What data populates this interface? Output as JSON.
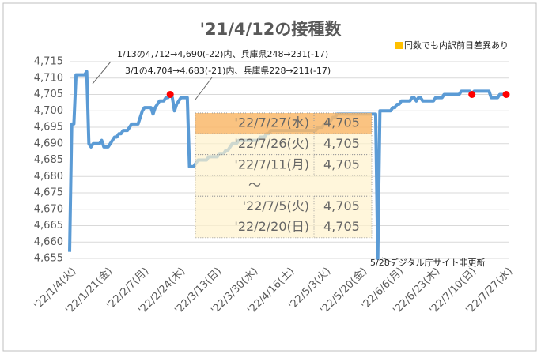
{
  "chart_data": {
    "type": "line",
    "title": "'21/4/12の接種数",
    "legend_note": {
      "text": "同数でも内訳前日差異あり",
      "color": "#ffc000"
    },
    "categories": [
      "'22/1/4(火)",
      null,
      null,
      null,
      null,
      null,
      null,
      null,
      null,
      null,
      null,
      null,
      null,
      null,
      null,
      null,
      null,
      "'22/1/21(金)",
      null,
      null,
      null,
      null,
      null,
      null,
      null,
      null,
      null,
      null,
      null,
      null,
      null,
      null,
      null,
      null,
      "'22/2/7(月)",
      null,
      null,
      null,
      null,
      null,
      null,
      null,
      null,
      null,
      null,
      null,
      null,
      null,
      null,
      null,
      null,
      "'22/2/24(木)",
      null,
      null,
      null,
      null,
      null,
      null,
      null,
      null,
      null,
      null,
      null,
      null,
      null,
      null,
      null,
      null,
      "'22/3/13(日)",
      null,
      null,
      null,
      null,
      null,
      null,
      null,
      null,
      null,
      null,
      null,
      null,
      null,
      null,
      null,
      null,
      "'22/3/30(水)",
      null,
      null,
      null,
      null,
      null,
      null,
      null,
      null,
      null,
      null,
      null,
      null,
      null,
      null,
      null,
      null,
      "'22/4/16(土)",
      null,
      null,
      null,
      null,
      null,
      null,
      null,
      null,
      null,
      null,
      null,
      null,
      null,
      null,
      null,
      null,
      "'22/5/3(火)",
      null,
      null,
      null,
      null,
      null,
      null,
      null,
      null,
      null,
      null,
      null,
      null,
      null,
      null,
      null,
      null,
      "'22/5/20(金)",
      null,
      null,
      null,
      null,
      null,
      null,
      null,
      null,
      null,
      null,
      null,
      null,
      null,
      null,
      null,
      null,
      "'22/6/6(月)",
      null,
      null,
      null,
      null,
      null,
      null,
      null,
      null,
      null,
      null,
      null,
      null,
      null,
      null,
      null,
      null,
      "'22/6/23(木)",
      null,
      null,
      null,
      null,
      null,
      null,
      null,
      null,
      null,
      null,
      null,
      null,
      null,
      null,
      null,
      null,
      "'22/7/10(日)",
      null,
      null,
      null,
      null,
      null,
      null,
      null,
      null,
      null,
      null,
      null,
      null,
      null,
      null,
      null,
      null,
      "'22/7/27(水)"
    ],
    "series": [
      {
        "color": "#5b9bd5",
        "values": [
          4657,
          4696,
          4696,
          4711,
          4711,
          4711,
          4711,
          4711,
          4712,
          4690,
          4689,
          4690,
          4690,
          4690,
          4690,
          4691,
          4689,
          4689,
          4689,
          4690,
          4691,
          4692,
          4692,
          4693,
          4693,
          4694,
          4694,
          4694,
          4695,
          4696,
          4696,
          4696,
          4696,
          4698,
          4700,
          4701,
          4701,
          4701,
          4701,
          4699,
          4701,
          4702,
          4703,
          4703,
          4703,
          4704,
          4704,
          4705,
          4704,
          4700,
          4702,
          4703,
          4704,
          4704,
          4704,
          4704,
          4683,
          4683,
          4683,
          4684,
          4685,
          4685,
          4685,
          4685,
          4685,
          4686,
          4686,
          4686,
          4686,
          4686,
          4687,
          4687,
          4687,
          4688,
          4688,
          4689,
          4690,
          4690,
          4690,
          4691,
          4691,
          4691,
          4691,
          4691,
          4691,
          4691,
          4691,
          4691,
          4691,
          4692,
          4692,
          4692,
          4693,
          4693,
          4694,
          4694,
          4694,
          4694,
          4694,
          4694,
          4694,
          4694,
          4694,
          4694,
          4694,
          4694,
          4694,
          4694,
          4694,
          4694,
          4694,
          4694,
          4694,
          4694,
          4694,
          4694,
          4695,
          4695,
          4695,
          4696,
          4696,
          4697,
          4697,
          4698,
          4698,
          4699,
          4699,
          4699,
          4699,
          4699,
          4699,
          4699,
          4699,
          4699,
          4699,
          4699,
          4699,
          4699,
          4699,
          4699,
          4699,
          4699,
          4699,
          4699,
          4655,
          4700,
          4700,
          4700,
          4700,
          4700,
          4700,
          4701,
          4701,
          4702,
          4702,
          4703,
          4703,
          4703,
          4703,
          4703,
          4704,
          4704,
          4703,
          4704,
          4704,
          4703,
          4703,
          4703,
          4703,
          4703,
          4703,
          4704,
          4704,
          4704,
          4704,
          4705,
          4705,
          4705,
          4705,
          4705,
          4705,
          4705,
          4705,
          4706,
          4706,
          4706,
          4706,
          4706,
          4705,
          4706,
          4706,
          4706,
          4706,
          4706,
          4706,
          4706,
          4706,
          4704,
          4704,
          4704,
          4704,
          4705,
          4705,
          4705,
          4705
        ]
      }
    ],
    "highlights": {
      "indices": [
        47,
        188,
        204
      ],
      "color": "#ff0000"
    },
    "ylim": [
      4655,
      4715
    ],
    "yticks": [
      {
        "value": 4655,
        "label": "4,655"
      },
      {
        "value": 4660,
        "label": "4,660"
      },
      {
        "value": 4665,
        "label": "4,665"
      },
      {
        "value": 4670,
        "label": "4,670"
      },
      {
        "value": 4675,
        "label": "4,675"
      },
      {
        "value": 4680,
        "label": "4,680"
      },
      {
        "value": 4685,
        "label": "4,685"
      },
      {
        "value": 4690,
        "label": "4,690"
      },
      {
        "value": 4695,
        "label": "4,695"
      },
      {
        "value": 4700,
        "label": "4,700"
      },
      {
        "value": 4705,
        "label": "4,705"
      },
      {
        "value": 4710,
        "label": "4,710"
      },
      {
        "value": 4715,
        "label": "4,715"
      }
    ],
    "grid": true,
    "annotations": [
      "1/13の4,712→4,690(-22)内、兵庫県248→231(-17)",
      "3/1の4,704→4,683(-21)内、兵庫県228→211(-17)",
      "5/28デジタル庁サイト非更新"
    ],
    "table": {
      "rows": [
        [
          "'22/7/27(水)",
          "4,705"
        ],
        [
          "'22/7/26(火)",
          "4,705"
        ],
        [
          "'22/7/11(月)",
          "4,705"
        ],
        [
          "～"
        ],
        [
          "'22/7/5(火)",
          "4,705"
        ],
        [
          "'22/2/20(日)",
          "4,705"
        ]
      ],
      "highlight_color": "#f9b96b"
    }
  }
}
